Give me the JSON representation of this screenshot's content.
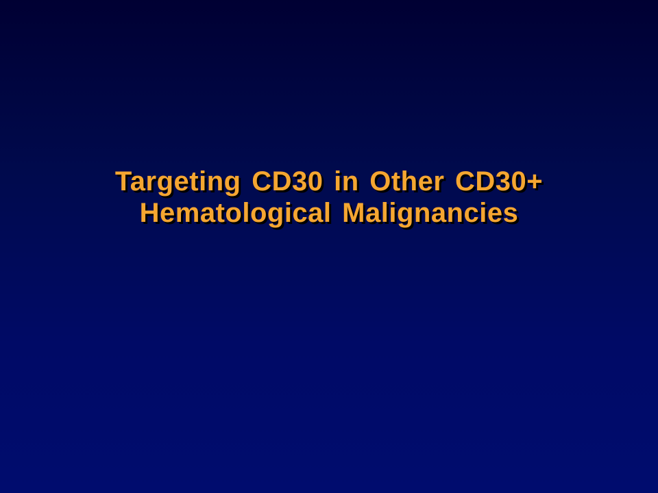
{
  "slide": {
    "title_lines": [
      "Targeting CD30 in Other CD30+",
      "Hematological  Malignancies"
    ]
  },
  "colors": {
    "background_top": "#000033",
    "background_bottom": "#000c6e",
    "title_text": "#f5a631",
    "title_shadow": "#000000"
  }
}
